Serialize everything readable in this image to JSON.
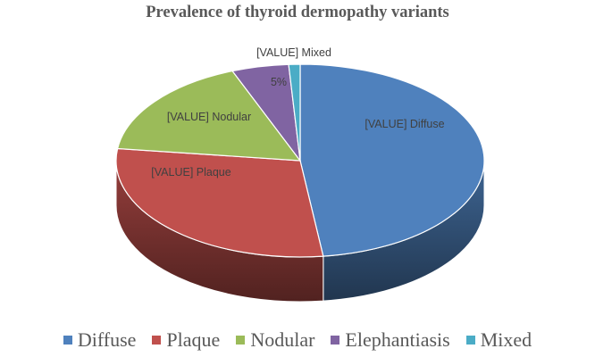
{
  "chart_data": {
    "type": "pie",
    "title": "Prevalence of thyroid dermopathy variants",
    "categories": [
      "Diffuse",
      "Plaque",
      "Nodular",
      "Elephantiasis",
      "Mixed"
    ],
    "values": [
      48,
      29,
      17,
      5,
      1
    ],
    "colors": [
      "#4f81bd",
      "#c0504d",
      "#9bbb59",
      "#8064a2",
      "#4bacc6"
    ],
    "data_labels": [
      "[VALUE] Diffuse",
      "[VALUE] Plaque",
      "[VALUE] Nodular",
      "5%",
      "[VALUE] Mixed"
    ],
    "style": "3d",
    "legend_position": "bottom"
  }
}
